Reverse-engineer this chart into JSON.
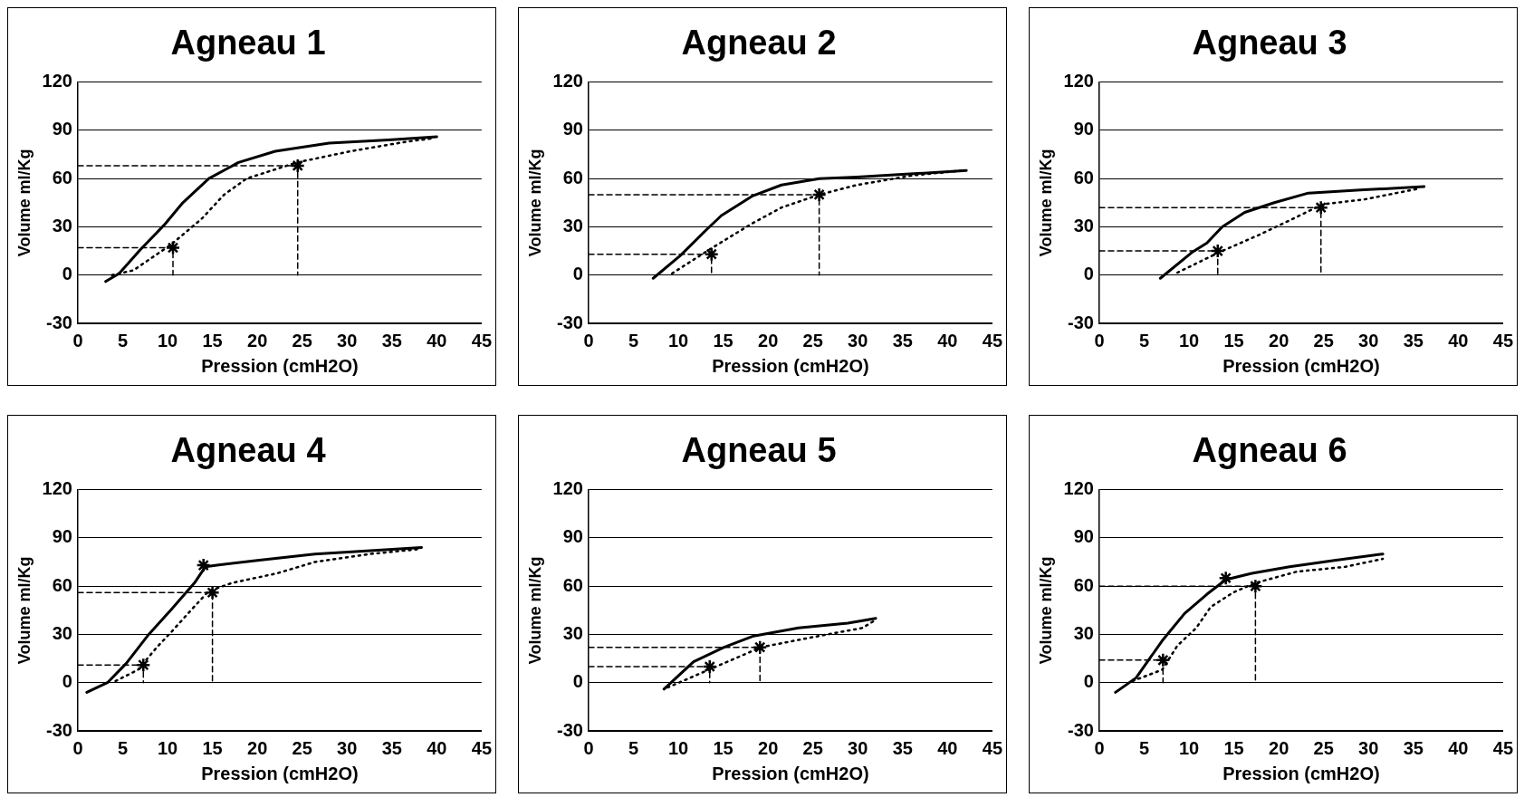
{
  "chart_data": [
    {
      "type": "line",
      "title": "Agneau 1",
      "xlabel": "Pression (cmH2O)",
      "ylabel": "Volume ml/Kg",
      "xlim": [
        0,
        45
      ],
      "xticks": [
        0,
        5,
        10,
        15,
        20,
        25,
        30,
        35,
        40,
        45
      ],
      "ylim": [
        -30,
        120
      ],
      "yticks": [
        -30,
        0,
        30,
        60,
        90,
        120
      ],
      "grid": "y",
      "series": [
        {
          "type": "line",
          "line_style": "solid",
          "marker": "none",
          "color": "#000000",
          "x": [
            3.1,
            4.6,
            7,
            9.6,
            11.7,
            14.6,
            17.9,
            22,
            28,
            34.6,
            40
          ],
          "values": [
            -4,
            1,
            16,
            31,
            45,
            60,
            70,
            77,
            82,
            84,
            86
          ]
        },
        {
          "type": "line",
          "line_style": "dotted",
          "marker": "none",
          "color": "#000000",
          "x": [
            3.8,
            6.2,
            10.4,
            13.8,
            16.3,
            18.8,
            24.4,
            30.4,
            36.7,
            39.6
          ],
          "values": [
            0,
            3,
            19,
            35,
            50,
            60,
            70,
            77,
            83,
            85
          ]
        },
        {
          "type": "line",
          "line_style": "dashed",
          "marker": "none",
          "color": "#000000",
          "x": [
            0,
            10.6,
            10.6
          ],
          "values": [
            17,
            17,
            0
          ]
        },
        {
          "type": "line",
          "line_style": "dashed",
          "marker": "none",
          "color": "#000000",
          "x": [
            0,
            24.5,
            24.5
          ],
          "values": [
            68,
            68,
            0
          ]
        },
        {
          "type": "scatter",
          "marker": "cross",
          "color": "#000000",
          "x": [
            10.6,
            24.5
          ],
          "values": [
            17,
            68
          ]
        }
      ]
    },
    {
      "type": "line",
      "title": "Agneau 2",
      "xlabel": "Pression (cmH2O)",
      "ylabel": "Volume ml/Kg",
      "xlim": [
        0,
        45
      ],
      "xticks": [
        0,
        5,
        10,
        15,
        20,
        25,
        30,
        35,
        40,
        45
      ],
      "ylim": [
        -30,
        120
      ],
      "yticks": [
        -30,
        0,
        30,
        60,
        90,
        120
      ],
      "grid": "y",
      "series": [
        {
          "type": "line",
          "line_style": "solid",
          "marker": "none",
          "color": "#000000",
          "x": [
            7.2,
            10.2,
            13.1,
            14.8,
            18.2,
            21.5,
            25.7,
            29.9,
            36.2,
            42.1
          ],
          "values": [
            -2,
            12,
            28,
            37,
            49,
            56,
            60,
            61,
            63,
            65
          ]
        },
        {
          "type": "line",
          "line_style": "dotted",
          "marker": "none",
          "color": "#000000",
          "x": [
            9.3,
            13.5,
            18.2,
            21.5,
            25.7,
            29.9,
            36.2,
            41.7
          ],
          "values": [
            1,
            16,
            32,
            42,
            50,
            56,
            62,
            65
          ]
        },
        {
          "type": "line",
          "line_style": "dashed",
          "marker": "none",
          "color": "#000000",
          "x": [
            0,
            13.7,
            13.7
          ],
          "values": [
            13,
            13,
            0
          ]
        },
        {
          "type": "line",
          "line_style": "dashed",
          "marker": "none",
          "color": "#000000",
          "x": [
            0,
            25.7,
            25.7
          ],
          "values": [
            50,
            50,
            0
          ]
        },
        {
          "type": "scatter",
          "marker": "cross",
          "color": "#000000",
          "x": [
            13.7,
            25.7
          ],
          "values": [
            13,
            50
          ]
        }
      ]
    },
    {
      "type": "line",
      "title": "Agneau 3",
      "xlabel": "Pression (cmH2O)",
      "ylabel": "Volume ml/Kg",
      "xlim": [
        0,
        45
      ],
      "xticks": [
        0,
        5,
        10,
        15,
        20,
        25,
        30,
        35,
        40,
        45
      ],
      "ylim": [
        -30,
        120
      ],
      "yticks": [
        -30,
        0,
        30,
        60,
        90,
        120
      ],
      "grid": "y",
      "series": [
        {
          "type": "line",
          "line_style": "solid",
          "marker": "none",
          "color": "#000000",
          "x": [
            6.8,
            10.3,
            12,
            13.7,
            16.2,
            19.5,
            23.3,
            29.5,
            36.2
          ],
          "values": [
            -2,
            14,
            20,
            30,
            39,
            45,
            51,
            53,
            55
          ]
        },
        {
          "type": "line",
          "line_style": "dotted",
          "marker": "none",
          "color": "#000000",
          "x": [
            8.7,
            13.3,
            17.8,
            21.2,
            24.9,
            29.5,
            35.8
          ],
          "values": [
            1.5,
            14,
            25,
            34,
            44,
            47,
            54
          ]
        },
        {
          "type": "line",
          "line_style": "dashed",
          "marker": "none",
          "color": "#000000",
          "x": [
            0,
            13.2,
            13.2
          ],
          "values": [
            15,
            15,
            0
          ]
        },
        {
          "type": "line",
          "line_style": "dashed",
          "marker": "none",
          "color": "#000000",
          "x": [
            0,
            24.7,
            24.7
          ],
          "values": [
            42,
            42,
            0
          ]
        },
        {
          "type": "scatter",
          "marker": "cross",
          "color": "#000000",
          "x": [
            13.2,
            24.7
          ],
          "values": [
            15,
            42
          ]
        }
      ]
    },
    {
      "type": "line",
      "title": "Agneau 4",
      "xlabel": "Pression (cmH2O)",
      "ylabel": "Volume ml/Kg",
      "xlim": [
        0,
        45
      ],
      "xticks": [
        0,
        5,
        10,
        15,
        20,
        25,
        30,
        35,
        40,
        45
      ],
      "ylim": [
        -30,
        120
      ],
      "yticks": [
        -30,
        0,
        30,
        60,
        90,
        120
      ],
      "grid": "y",
      "series": [
        {
          "type": "line",
          "line_style": "solid",
          "marker": "none",
          "color": "#000000",
          "x": [
            1,
            3.3,
            5.4,
            7.9,
            10.5,
            13,
            14.2,
            15.5,
            20,
            26.4,
            32.6,
            38.3
          ],
          "values": [
            -6,
            0,
            12,
            30,
            46,
            62,
            72,
            73,
            76,
            80,
            82,
            84
          ]
        },
        {
          "type": "line",
          "line_style": "dotted",
          "marker": "none",
          "color": "#000000",
          "x": [
            4.2,
            6.7,
            8.8,
            10.5,
            12.6,
            14.6,
            17.2,
            22.2,
            26.4,
            32.6,
            38
          ],
          "values": [
            1,
            8,
            22,
            32,
            45,
            57,
            62,
            68,
            75,
            80,
            83
          ]
        },
        {
          "type": "line",
          "line_style": "dashed",
          "marker": "none",
          "color": "#000000",
          "x": [
            0,
            7.3,
            7.3
          ],
          "values": [
            11,
            11,
            0
          ]
        },
        {
          "type": "line",
          "line_style": "dashed",
          "marker": "none",
          "color": "#000000",
          "x": [
            0,
            15,
            15
          ],
          "values": [
            56,
            56,
            0
          ]
        },
        {
          "type": "scatter",
          "marker": "cross",
          "color": "#000000",
          "x": [
            7.3,
            15,
            14
          ],
          "values": [
            11,
            56,
            73
          ]
        }
      ]
    },
    {
      "type": "line",
      "title": "Agneau 5",
      "xlabel": "Pression (cmH2O)",
      "ylabel": "Volume ml/Kg",
      "xlim": [
        0,
        45
      ],
      "xticks": [
        0,
        5,
        10,
        15,
        20,
        25,
        30,
        35,
        40,
        45
      ],
      "ylim": [
        -30,
        120
      ],
      "yticks": [
        -30,
        0,
        30,
        60,
        90,
        120
      ],
      "grid": "y",
      "series": [
        {
          "type": "line",
          "line_style": "solid",
          "marker": "none",
          "color": "#000000",
          "x": [
            8.4,
            11.7,
            15.1,
            18.4,
            23.4,
            28.9,
            32
          ],
          "values": [
            -4,
            13,
            22,
            29,
            34,
            37,
            40
          ]
        },
        {
          "type": "line",
          "line_style": "dotted",
          "marker": "none",
          "color": "#000000",
          "x": [
            8.8,
            13.4,
            19.2,
            24.7,
            30.5,
            32
          ],
          "values": [
            -3,
            8,
            22,
            28,
            34,
            39
          ]
        },
        {
          "type": "line",
          "line_style": "dashed",
          "marker": "none",
          "color": "#000000",
          "x": [
            0,
            13.5,
            13.5
          ],
          "values": [
            10,
            10,
            0
          ]
        },
        {
          "type": "line",
          "line_style": "dashed",
          "marker": "none",
          "color": "#000000",
          "x": [
            0,
            19.1,
            19.1
          ],
          "values": [
            22,
            22,
            0
          ]
        },
        {
          "type": "scatter",
          "marker": "cross",
          "color": "#000000",
          "x": [
            13.5,
            19.1
          ],
          "values": [
            10,
            22
          ]
        }
      ]
    },
    {
      "type": "line",
      "title": "Agneau 6",
      "xlabel": "Pression (cmH2O)",
      "ylabel": "Volume ml/Kg",
      "xlim": [
        0,
        45
      ],
      "xticks": [
        0,
        5,
        10,
        15,
        20,
        25,
        30,
        35,
        40,
        45
      ],
      "ylim": [
        -30,
        120
      ],
      "yticks": [
        -30,
        0,
        30,
        60,
        90,
        120
      ],
      "grid": "y",
      "series": [
        {
          "type": "line",
          "line_style": "solid",
          "marker": "none",
          "color": "#000000",
          "x": [
            1.8,
            4.1,
            7,
            9.5,
            12,
            14.1,
            17,
            21.2,
            26.2,
            31.6
          ],
          "values": [
            -6,
            3,
            26,
            43,
            55,
            64,
            68,
            72,
            76,
            80
          ]
        },
        {
          "type": "line",
          "line_style": "dotted",
          "marker": "none",
          "color": "#000000",
          "x": [
            3.7,
            7,
            8.7,
            10.8,
            12.4,
            14.9,
            17.4,
            22,
            27.4,
            31.6
          ],
          "values": [
            1,
            8,
            23,
            34,
            47,
            56,
            62,
            69,
            72,
            77
          ]
        },
        {
          "type": "line",
          "line_style": "dashed",
          "marker": "none",
          "color": "#000000",
          "x": [
            0,
            7.1,
            7.1
          ],
          "values": [
            14,
            14,
            0
          ]
        },
        {
          "type": "line",
          "line_style": "dashed",
          "marker": "none",
          "color": "#000000",
          "x": [
            0,
            17.4,
            17.4
          ],
          "values": [
            60,
            60,
            0
          ]
        },
        {
          "type": "scatter",
          "marker": "cross",
          "color": "#000000",
          "x": [
            7.1,
            17.4,
            14.1
          ],
          "values": [
            14,
            60,
            65
          ]
        }
      ]
    }
  ]
}
